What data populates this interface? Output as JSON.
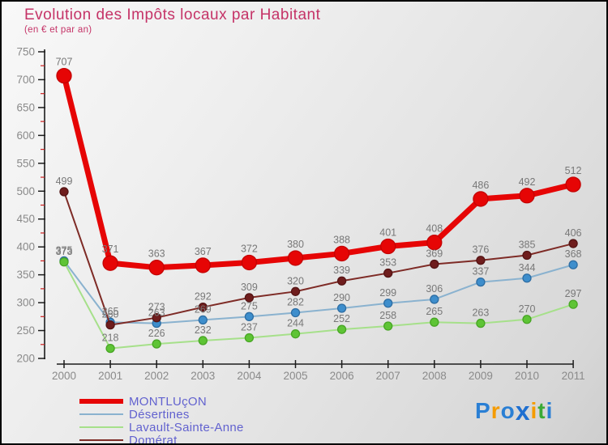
{
  "title": {
    "text": "Evolution des Impôts locaux par Habitant",
    "subtitle": "(en € et par an)",
    "color": "#c53367"
  },
  "chart_data": {
    "type": "line",
    "categories": [
      "2000",
      "2001",
      "2002",
      "2003",
      "2004",
      "2005",
      "2006",
      "2007",
      "2008",
      "2009",
      "2010",
      "2011"
    ],
    "series": [
      {
        "name": "MONTLUçON",
        "values": [
          707,
          371,
          363,
          367,
          372,
          380,
          388,
          401,
          408,
          486,
          492,
          512
        ],
        "color": "#e60505",
        "marker_color": "#e60505",
        "marker_stroke": "#c40303",
        "line_width": 7,
        "marker_radius": 9
      },
      {
        "name": "Désertines",
        "values": [
          375,
          265,
          263,
          269,
          275,
          282,
          290,
          299,
          306,
          337,
          344,
          368
        ],
        "color": "#8ab2cf",
        "marker_color": "#3e8ecc",
        "marker_stroke": "#2d6da3",
        "line_width": 2,
        "marker_radius": 5
      },
      {
        "name": "Lavault-Sainte-Anne",
        "values": [
          373,
          218,
          226,
          232,
          237,
          244,
          252,
          258,
          265,
          263,
          270,
          297
        ],
        "color": "#a6e08a",
        "marker_color": "#5ec435",
        "marker_stroke": "#47a524",
        "line_width": 2,
        "marker_radius": 5
      },
      {
        "name": "Domérat",
        "values": [
          499,
          260,
          273,
          292,
          309,
          320,
          339,
          353,
          369,
          376,
          385,
          406
        ],
        "color": "#7e2b26",
        "marker_color": "#6f1d1d",
        "marker_stroke": "#541414",
        "line_width": 2,
        "marker_radius": 5
      }
    ],
    "title": "Evolution des Impôts locaux par Habitant",
    "xlabel": "",
    "ylabel": "",
    "ylim": [
      200,
      750
    ],
    "y_major_step": 50,
    "y_minor_step": 25,
    "grid": false,
    "legend_position": "bottom-left",
    "axis": {
      "line_color": "#1c1c1c",
      "major_tick_color": "#1c1c1c",
      "minor_tick_color": "#cc2222",
      "tick_label_color": "#8a8a8a",
      "value_label_color": "#787878"
    }
  },
  "legend": {
    "text_color": "#6262cf"
  },
  "logo": {
    "name": "Proxiti",
    "letters": [
      {
        "ch": "P",
        "color": "#2a7fd4"
      },
      {
        "ch": "r",
        "color": "#f59b00"
      },
      {
        "ch": "o",
        "color": "#2a7fd4"
      },
      {
        "ch": "x",
        "color": "#1f6fd0",
        "bold": true
      },
      {
        "ch": "i",
        "color": "#f59b00"
      },
      {
        "ch": "t",
        "color": "#3aaa35"
      },
      {
        "ch": "i",
        "color": "#2a7fd4"
      }
    ]
  }
}
